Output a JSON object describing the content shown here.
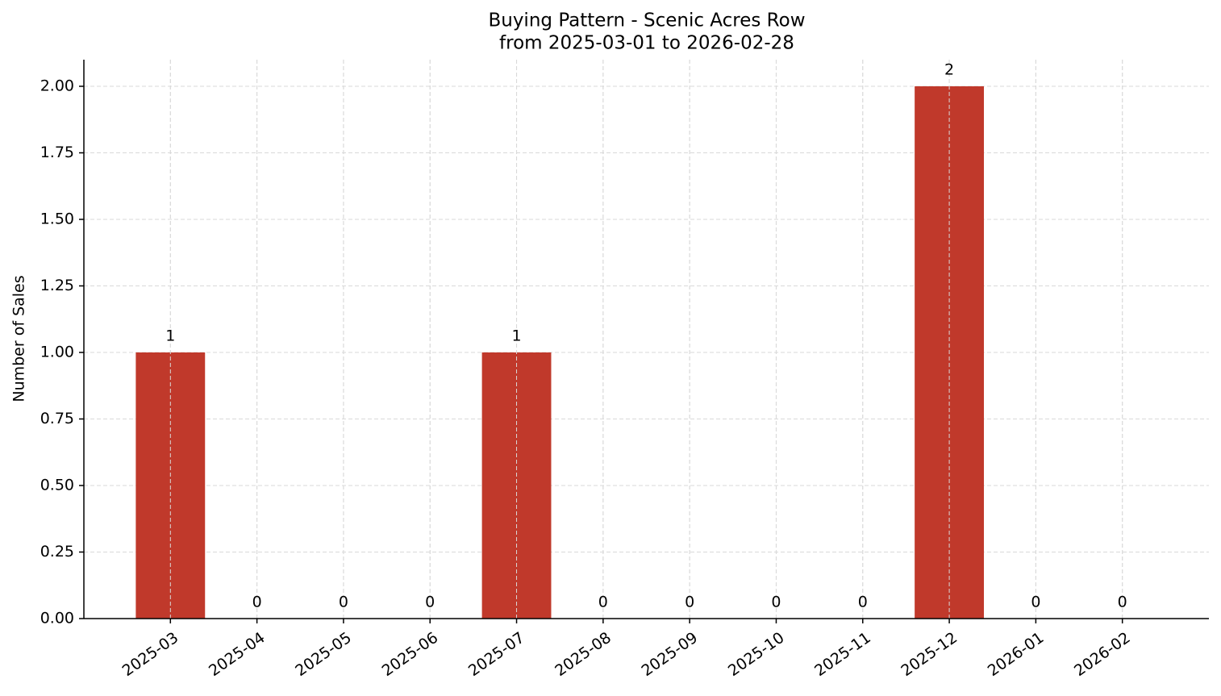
{
  "chart_data": {
    "type": "bar",
    "title": "Buying Pattern - Scenic Acres Row",
    "subtitle": "from 2025-03-01 to 2026-02-28",
    "y_label": "Number of Sales",
    "categories": [
      "2025-03",
      "2025-04",
      "2025-05",
      "2025-06",
      "2025-07",
      "2025-08",
      "2025-09",
      "2025-10",
      "2025-11",
      "2025-12",
      "2026-01",
      "2026-02"
    ],
    "values": [
      1,
      0,
      0,
      0,
      1,
      0,
      0,
      0,
      0,
      2,
      0,
      0
    ],
    "color": "#c0392b",
    "ylim": [
      0,
      2.1
    ],
    "yticks": [
      {
        "value": 0,
        "label": "0.00"
      },
      {
        "value": 0.25,
        "label": "0.25"
      },
      {
        "value": 0.5,
        "label": "0.50"
      },
      {
        "value": 0.75,
        "label": "0.75"
      },
      {
        "value": 1,
        "label": "1.00"
      },
      {
        "value": 1.25,
        "label": "1.25"
      },
      {
        "value": 1.5,
        "label": "1.50"
      },
      {
        "value": 1.75,
        "label": "1.75"
      },
      {
        "value": 2,
        "label": "2.00"
      }
    ],
    "grid": true
  }
}
